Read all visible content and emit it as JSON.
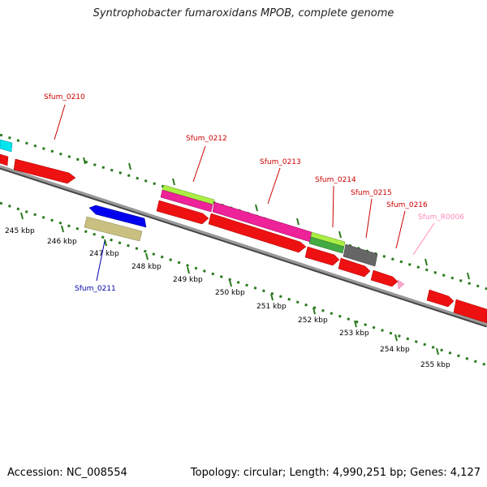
{
  "title": "Syntrophobacter fumaroxidans MPOB, complete genome",
  "footer": {
    "accession": "Accession: NC_008554",
    "summary": "Topology: circular; Length: 4,990,251 bp; Genes: 4,127"
  },
  "colors": {
    "backbone": "#7a7a7a",
    "tick": "#2a7a1e",
    "cds": "#ee1111",
    "forward_label": "#cc0000",
    "reverse_label": "#0000aa",
    "rna_label": "#ff88bb"
  },
  "scale_labels": [
    "245 kbp",
    "246 kbp",
    "247 kbp",
    "248 kbp",
    "249 kbp",
    "250 kbp",
    "251 kbp",
    "252 kbp",
    "253 kbp",
    "254 kbp",
    "255 kbp"
  ],
  "gene_labels": [
    {
      "id": "sfum0210",
      "text": "Sfum_0210",
      "color": "#cc0000"
    },
    {
      "id": "sfum0211",
      "text": "Sfum_0211",
      "color": "#0000aa"
    },
    {
      "id": "sfum0212",
      "text": "Sfum_0212",
      "color": "#cc0000"
    },
    {
      "id": "sfum0213",
      "text": "Sfum_0213",
      "color": "#cc0000"
    },
    {
      "id": "sfum0214",
      "text": "Sfum_0214",
      "color": "#cc0000"
    },
    {
      "id": "sfum0215",
      "text": "Sfum_0215",
      "color": "#cc0000"
    },
    {
      "id": "sfum0216",
      "text": "Sfum_0216",
      "color": "#cc0000"
    },
    {
      "id": "sfumr0006",
      "text": "Sfum_R0006",
      "color": "#ff88bb"
    }
  ],
  "feature_colors": {
    "cds": "#ee1111",
    "cds_dark": "#aa0000",
    "cog_cyan": "#00e5ee",
    "cog_blue": "#0000ee",
    "cog_khaki": "#c8bf80",
    "cog_lime": "#aaee44",
    "cog_pink": "#ee2299",
    "cog_green": "#44aa44",
    "cog_gray": "#666666",
    "rna": "#ffaacc"
  }
}
